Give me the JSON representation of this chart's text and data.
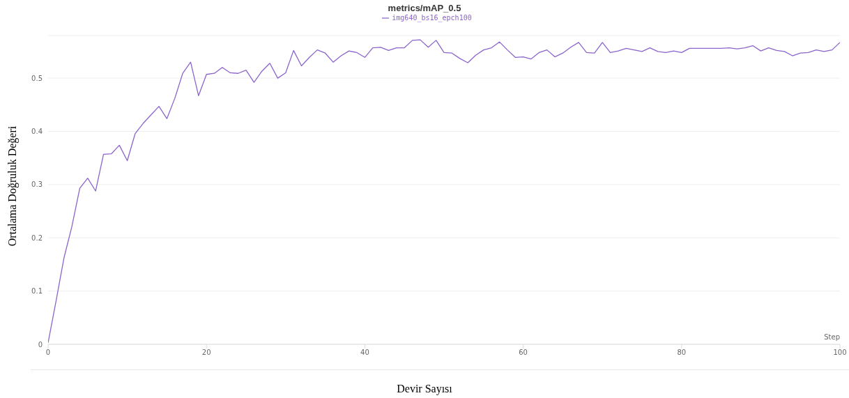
{
  "chart_data": {
    "type": "line",
    "title": "metrics/mAP_0.5",
    "xlabel": "Devir Sayısı",
    "ylabel": "Ortalama Doğruluk Değeri",
    "annotations": [
      "Step"
    ],
    "x": [
      0,
      1,
      2,
      3,
      4,
      5,
      6,
      7,
      8,
      9,
      10,
      11,
      12,
      13,
      14,
      15,
      16,
      17,
      18,
      19,
      20,
      21,
      22,
      23,
      24,
      25,
      26,
      27,
      28,
      29,
      30,
      31,
      32,
      33,
      34,
      35,
      36,
      37,
      38,
      39,
      40,
      41,
      42,
      43,
      44,
      45,
      46,
      47,
      48,
      49,
      50,
      51,
      52,
      53,
      54,
      55,
      56,
      57,
      58,
      59,
      60,
      61,
      62,
      63,
      64,
      65,
      66,
      67,
      68,
      69,
      70,
      71,
      72,
      73,
      74,
      75,
      76,
      77,
      78,
      79,
      80,
      81,
      82,
      83,
      84,
      85,
      86,
      87,
      88,
      89,
      90,
      91,
      92,
      93,
      94,
      95,
      96,
      97,
      98,
      99,
      100
    ],
    "series": [
      {
        "name": "img640_bs16_epch100",
        "color": "#8b64cc",
        "values": [
          0.003,
          0.081,
          0.162,
          0.221,
          0.293,
          0.312,
          0.288,
          0.357,
          0.358,
          0.374,
          0.345,
          0.396,
          0.415,
          0.431,
          0.447,
          0.424,
          0.462,
          0.509,
          0.53,
          0.467,
          0.507,
          0.509,
          0.52,
          0.51,
          0.509,
          0.515,
          0.492,
          0.513,
          0.528,
          0.5,
          0.51,
          0.552,
          0.523,
          0.539,
          0.553,
          0.547,
          0.53,
          0.542,
          0.551,
          0.548,
          0.539,
          0.557,
          0.558,
          0.552,
          0.557,
          0.557,
          0.571,
          0.572,
          0.558,
          0.571,
          0.548,
          0.547,
          0.537,
          0.529,
          0.543,
          0.553,
          0.557,
          0.568,
          0.553,
          0.539,
          0.54,
          0.536,
          0.548,
          0.553,
          0.54,
          0.547,
          0.558,
          0.567,
          0.548,
          0.547,
          0.567,
          0.548,
          0.551,
          0.556,
          0.553,
          0.55,
          0.557,
          0.55,
          0.548,
          0.551,
          0.548,
          0.556,
          0.556,
          0.556,
          0.556,
          0.556,
          0.557,
          0.555,
          0.557,
          0.561,
          0.551,
          0.557,
          0.552,
          0.55,
          0.542,
          0.547,
          0.548,
          0.553,
          0.55,
          0.553,
          0.567
        ]
      }
    ],
    "xlim": [
      0,
      100
    ],
    "xticks": [
      0,
      20,
      40,
      60,
      80,
      100
    ],
    "ylim": [
      0,
      0.58
    ],
    "yticks": [
      0,
      0.1,
      0.2,
      0.3,
      0.4,
      0.5
    ],
    "grid": "y",
    "legend": "top",
    "marker": "none",
    "line_style": "solid"
  }
}
